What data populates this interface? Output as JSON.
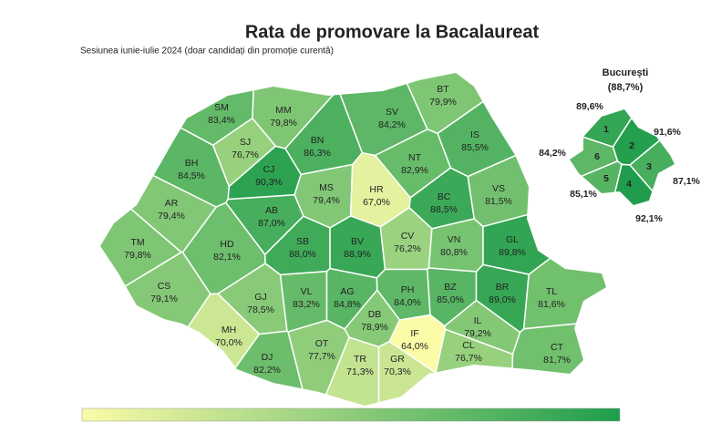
{
  "chart_data": {
    "type": "choropleth",
    "title": "Rata de promovare la Bacalaureat",
    "subtitle": "Sesiunea iunie-iulie 2024 (doar candidați din promoție curentă)",
    "color_scale": [
      "#fbfba8",
      "#1f9d4c"
    ],
    "categories": [
      "SM",
      "MM",
      "BT",
      "SV",
      "SJ",
      "BN",
      "IS",
      "CJ",
      "BH",
      "NT",
      "MS",
      "HR",
      "BC",
      "VS",
      "AR",
      "AB",
      "CV",
      "VN",
      "GL",
      "TM",
      "HD",
      "SB",
      "BV",
      "CS",
      "GJ",
      "VL",
      "AG",
      "BZ",
      "PH",
      "BR",
      "TL",
      "MH",
      "DB",
      "IF",
      "IL",
      "DJ",
      "OT",
      "TR",
      "GR",
      "CL",
      "CT"
    ],
    "values": [
      83.4,
      79.8,
      79.9,
      84.2,
      76.7,
      86.3,
      85.5,
      90.3,
      84.5,
      82.9,
      79.4,
      67.0,
      88.5,
      81.5,
      79.4,
      87.0,
      76.2,
      80.8,
      89.8,
      79.8,
      82.1,
      88.0,
      88.9,
      79.1,
      78.5,
      83.2,
      84.8,
      85.0,
      84.0,
      89.0,
      81.6,
      70.0,
      78.9,
      64.0,
      79.2,
      82.2,
      77.7,
      71.3,
      70.3,
      76.7,
      81.7
    ],
    "value_labels": [
      "83,4%",
      "79,8%",
      "79,9%",
      "84,2%",
      "76,7%",
      "86,3%",
      "85,5%",
      "90,3%",
      "84,5%",
      "82,9%",
      "79,4%",
      "67,0%",
      "88,5%",
      "81,5%",
      "79,4%",
      "87,0%",
      "76,2%",
      "80,8%",
      "89,8%",
      "79,8%",
      "82,1%",
      "88,0%",
      "88,9%",
      "79,1%",
      "78,5%",
      "83,2%",
      "84,8%",
      "85,0%",
      "84,0%",
      "89,0%",
      "81,6%",
      "70,0%",
      "78,9%",
      "64,0%",
      "79,2%",
      "82,2%",
      "77,7%",
      "71,3%",
      "70,3%",
      "76,7%",
      "81,7%"
    ],
    "bucharest": {
      "title": "București",
      "value": 88.7,
      "value_label": "(88,7%)",
      "categories": [
        "1",
        "2",
        "3",
        "4",
        "5",
        "6"
      ],
      "values": [
        89.6,
        91.6,
        87.1,
        92.1,
        85.1,
        84.2
      ],
      "value_labels": [
        "89,6%",
        "91,6%",
        "87,1%",
        "92,1%",
        "85,1%",
        "84,2%"
      ]
    }
  }
}
